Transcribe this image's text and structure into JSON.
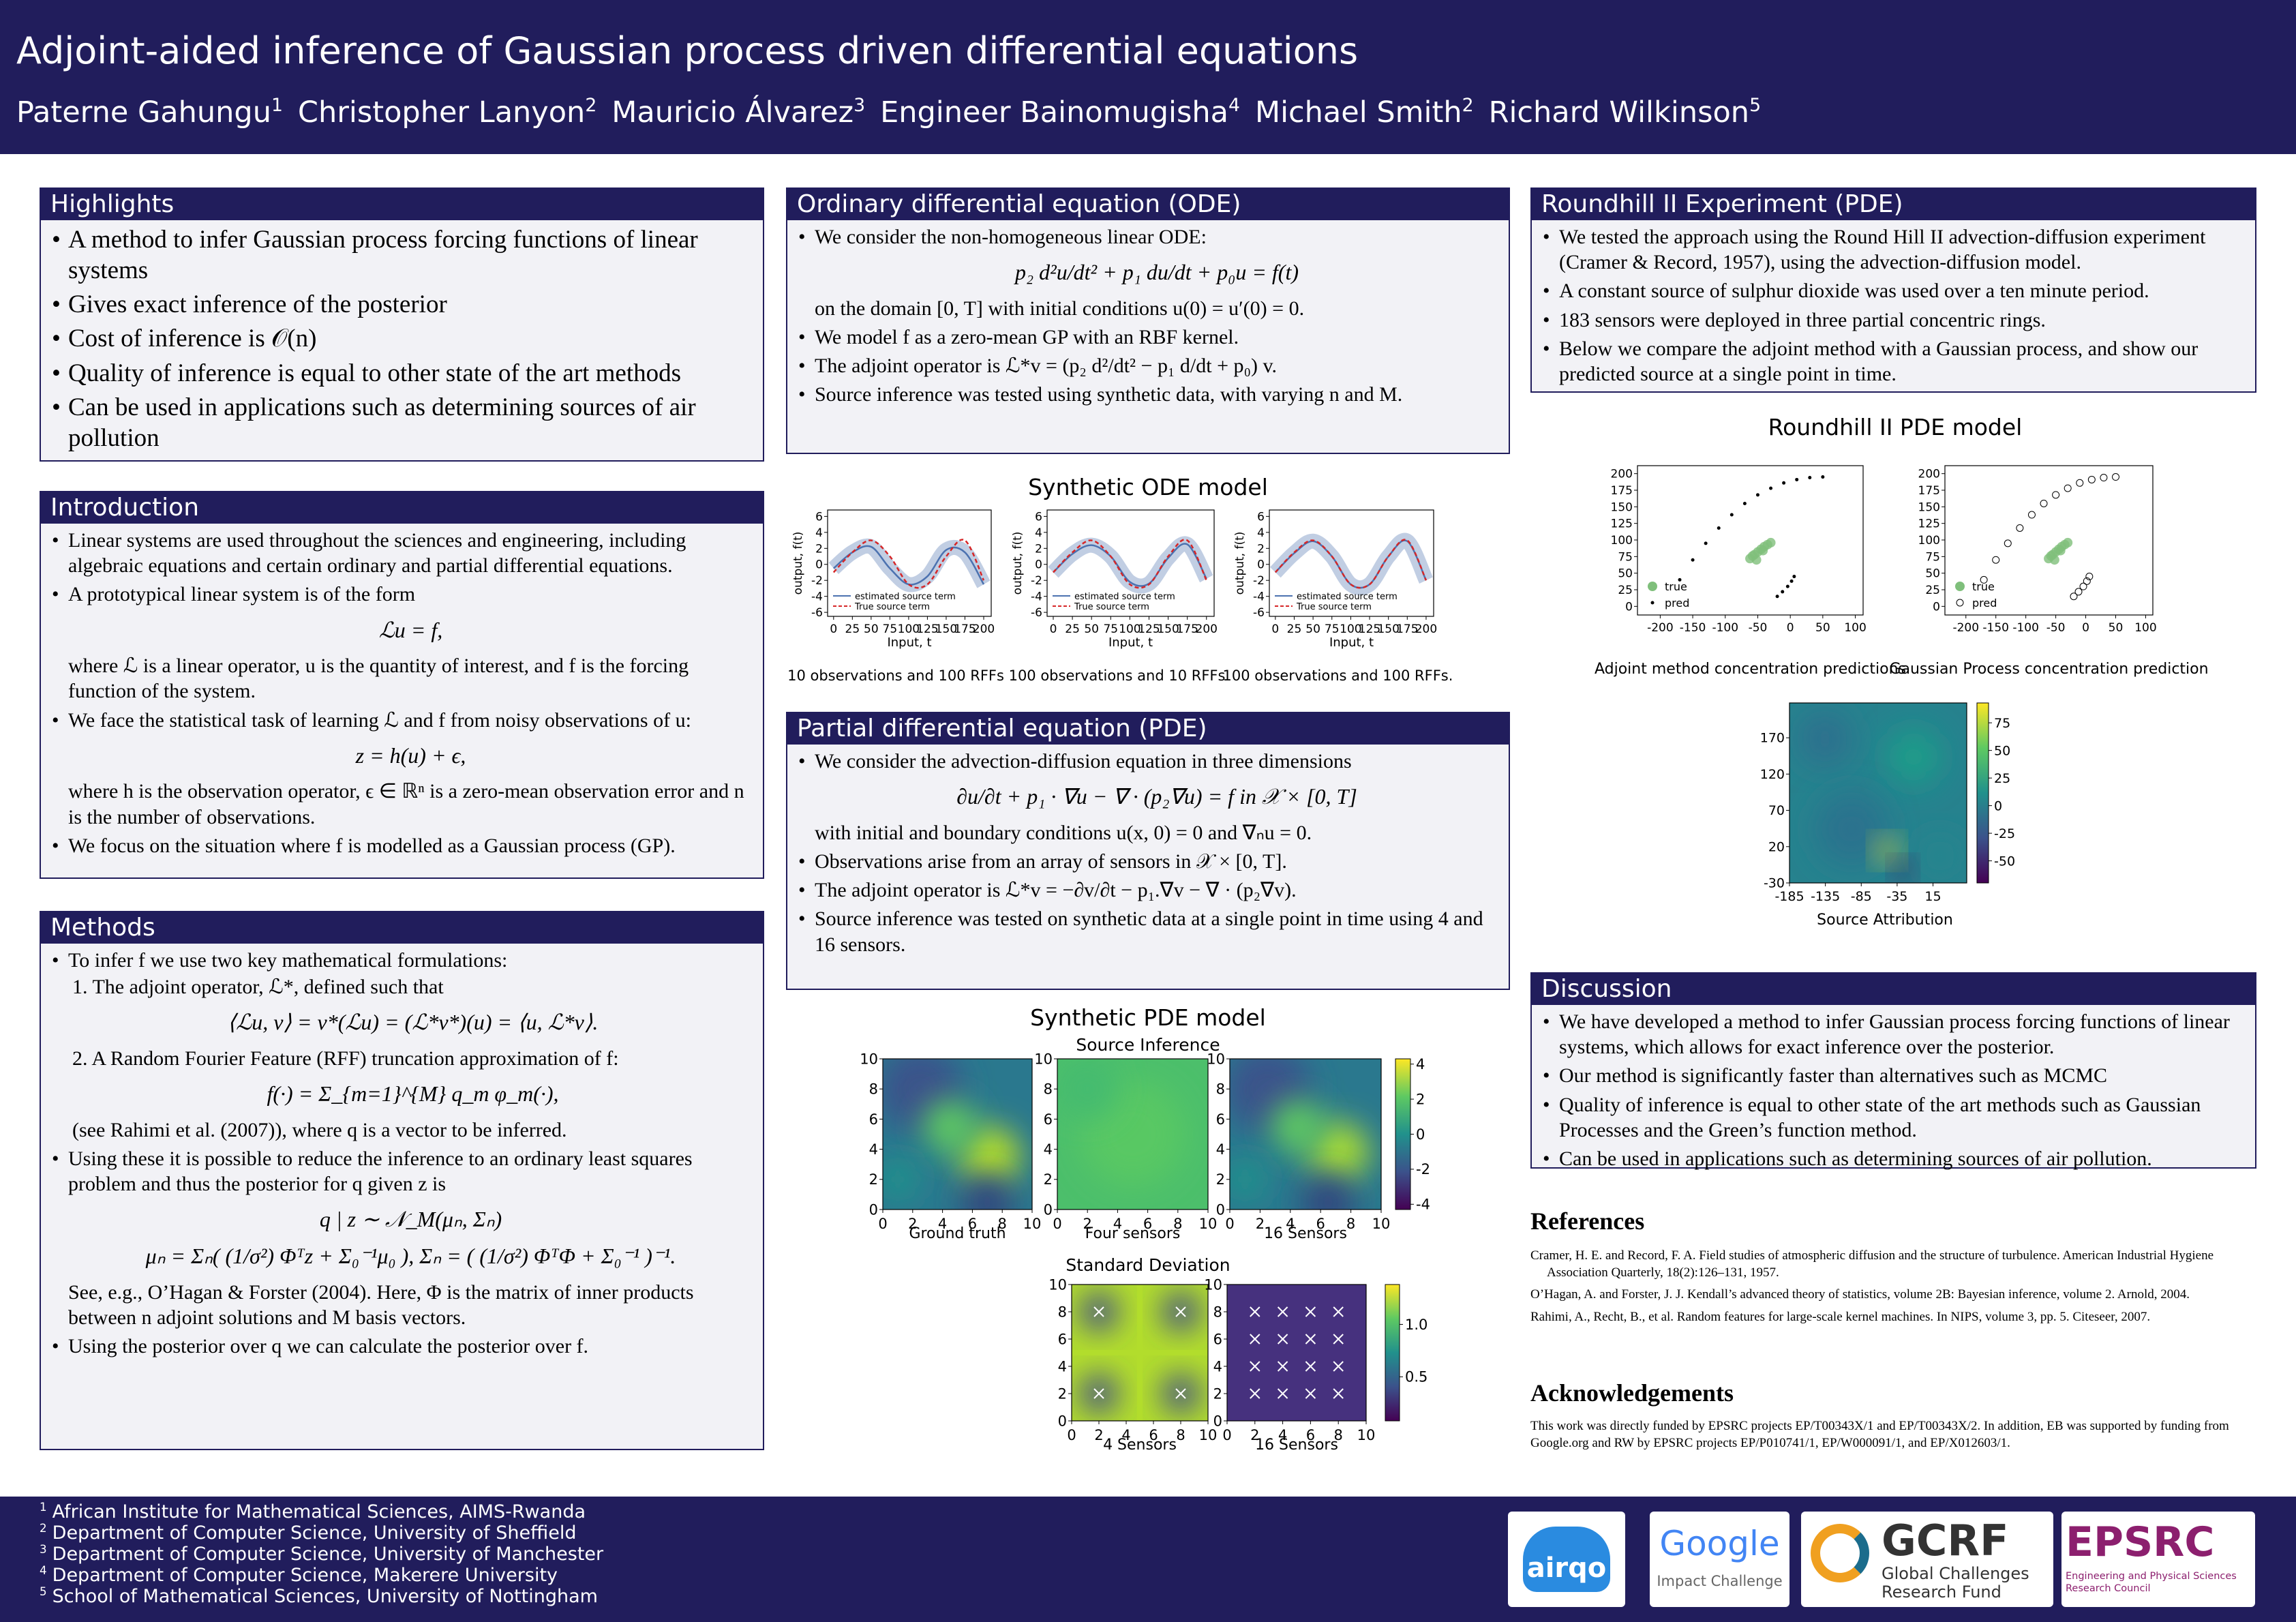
{
  "header": {
    "title": "Adjoint-aided inference of Gaussian process driven differential equations",
    "authors": [
      {
        "name": "Paterne Gahungu",
        "affiliation": "1"
      },
      {
        "name": "Christopher Lanyon",
        "affiliation": "2"
      },
      {
        "name": "Mauricio Álvarez",
        "affiliation": "3"
      },
      {
        "name": "Engineer Bainomugisha",
        "affiliation": "4"
      },
      {
        "name": "Michael Smith",
        "affiliation": "2"
      },
      {
        "name": "Richard Wilkinson",
        "affiliation": "5"
      }
    ]
  },
  "highlights": {
    "title": "Highlights",
    "items": [
      "A method to infer Gaussian process forcing functions of linear systems",
      "Gives exact inference of the posterior",
      "Cost of inference is 𝒪(n)",
      "Quality of inference is equal to other state of the art methods",
      "Can be used in applications such as determining sources of air pollution"
    ]
  },
  "introduction": {
    "title": "Introduction",
    "items": [
      "Linear systems are used throughout the sciences and engineering, including algebraic equations and certain ordinary and partial differential equations.",
      {
        "text": "A prototypical linear system is of the form",
        "equations": [
          "ℒu = f,"
        ],
        "after": "where ℒ is a linear operator, u is the quantity of interest, and f is the forcing function of the system."
      },
      {
        "text": "We face the statistical task of learning ℒ and f from noisy observations of u:",
        "equations": [
          "z = h(u) + ϵ,"
        ],
        "after": "where h is the observation operator, ϵ ∈ ℝⁿ is a zero-mean observation error and n is the number of observations."
      },
      "We focus on the situation where f is modelled as a Gaussian process (GP)."
    ]
  },
  "methods": {
    "title": "Methods",
    "items": [
      {
        "text": "To infer f we use two key mathematical formulations:",
        "sub": [
          {
            "text": "1. The adjoint operator, ℒ*, defined such that",
            "equations": [
              "⟨ℒu, v⟩ = v*(ℒu) = (ℒ*v*)(u) = ⟨u, ℒ*v⟩."
            ]
          },
          {
            "text": "2. A Random Fourier Feature (RFF) truncation approximation of f:",
            "equations": [
              "f(·) = Σ_{m=1}^{M} q_m φ_m(·),"
            ],
            "after": "(see Rahimi et al. (2007)), where q is a vector to be inferred."
          }
        ]
      },
      {
        "text": "Using these it is possible to reduce the inference to an ordinary least squares problem and thus the posterior for q given z is",
        "equations": [
          "q | z ∼ 𝒩_M(μₙ, Σₙ)",
          "μₙ = Σₙ( (1/σ²) Φᵀz + Σ₀⁻¹μ₀ ),   Σₙ = ( (1/σ²) ΦᵀΦ + Σ₀⁻¹ )⁻¹."
        ],
        "after": "See, e.g., O’Hagan & Forster (2004). Here, Φ is the matrix of inner products between n adjoint solutions and M basis vectors."
      },
      "Using the posterior over q we can calculate the posterior over f."
    ]
  },
  "ode": {
    "title": "Ordinary differential equation (ODE)",
    "items": [
      {
        "text": "We consider the non-homogeneous linear ODE:",
        "equations": [
          "p₂ d²u/dt² + p₁ du/dt + p₀u = f(t)"
        ],
        "after": "on the domain [0, T] with initial conditions u(0) = u′(0) = 0."
      },
      "We model f as a zero-mean GP with an RBF kernel.",
      "The adjoint operator is ℒ*v = (p₂ d²/dt² − p₁ d/dt + p₀) v.",
      "Source inference was tested using synthetic data, with varying n and M."
    ]
  },
  "pde": {
    "title": "Partial differential equation (PDE)",
    "items": [
      {
        "text": "We consider the advection-diffusion equation in three dimensions",
        "equations": [
          "∂u/∂t + p₁ · ∇u − ∇ · (p₂∇u) = f in 𝒳 × [0, T]"
        ],
        "after": "with initial and boundary conditions u(x, 0) = 0 and ∇ₙu = 0."
      },
      "Observations arise from an array of sensors in 𝒳 × [0, T].",
      "The adjoint operator is ℒ*v = −∂v/∂t − p₁.∇v − ∇ · (p₂∇v).",
      "Source inference was tested on synthetic data at a single point in time using 4 and 16 sensors."
    ]
  },
  "roundhill": {
    "title": "Roundhill II Experiment (PDE)",
    "items": [
      "We tested the approach using the Round Hill II advection-diffusion experiment (Cramer & Record, 1957), using the advection-diffusion model.",
      "A constant source of sulphur dioxide was used over a ten minute period.",
      "183 sensors were deployed in three partial concentric rings.",
      "Below we compare the adjoint method with a Gaussian process, and show our predicted source at a single point in time."
    ]
  },
  "discussion": {
    "title": "Discussion",
    "items": [
      "We have developed a method to infer Gaussian process forcing functions of linear systems, which allows for exact inference over the posterior.",
      "Our method is significantly faster than alternatives such as MCMC",
      "Quality of inference is equal to other state of the art methods such as Gaussian Processes and the Green’s function method.",
      "Can be used in applications such as determining sources of air pollution."
    ]
  },
  "references": {
    "title": "References",
    "items": [
      "Cramer, H. E. and Record, F. A. Field studies of atmospheric diffusion and the structure of turbulence. American Industrial Hygiene Association Quarterly, 18(2):126–131, 1957.",
      "O’Hagan, A. and Forster, J. J. Kendall’s advanced theory of statistics, volume 2B: Bayesian inference, volume 2. Arnold, 2004.",
      "Rahimi, A., Recht, B., et al. Random features for large-scale kernel machines. In NIPS, volume 3, pp. 5. Citeseer, 2007."
    ]
  },
  "acknowledgements": {
    "title": "Acknowledgements",
    "text": "This work was directly funded by EPSRC projects EP/T00343X/1 and EP/T00343X/2. In addition, EB was supported by funding from Google.org and RW by EPSRC projects EP/P010741/1, EP/W000091/1, and EP/X012603/1."
  },
  "ode_figure": {
    "title": "Synthetic ODE model",
    "panels": [
      {
        "type": "line",
        "caption": "10 observations and 100 RFFs",
        "xlabel": "Input, t",
        "ylabel": "output, f(t)",
        "x": [
          0,
          25,
          50,
          75,
          100,
          125,
          150,
          175,
          200
        ],
        "xlim": [
          -8,
          210
        ],
        "ylim": [
          -6.5,
          6.8
        ],
        "xticks": [
          0,
          25,
          50,
          75,
          100,
          125,
          150,
          175,
          200
        ],
        "yticks": [
          -6,
          -4,
          -2,
          0,
          2,
          4,
          6
        ],
        "series": [
          {
            "name": "estimated source term",
            "color": "#4c72b0",
            "values": [
              -0.5,
              1.5,
              2.2,
              -0.5,
              -2.5,
              -1.5,
              1.8,
              1.5,
              -2.5
            ]
          },
          {
            "name": "True source term",
            "color": "#d62728",
            "dashed": true,
            "values": [
              -1,
              1.5,
              3,
              1,
              -2.5,
              -2.5,
              1,
              3,
              -2
            ]
          }
        ]
      },
      {
        "type": "line",
        "caption": "100 observations and 10 RFFs",
        "xlabel": "Input, t",
        "ylabel": "output, f(t)",
        "x": [
          0,
          25,
          50,
          75,
          100,
          125,
          150,
          175,
          200
        ],
        "xlim": [
          -8,
          210
        ],
        "ylim": [
          -6.5,
          6.8
        ],
        "xticks": [
          0,
          25,
          50,
          75,
          100,
          125,
          150,
          175,
          200
        ],
        "yticks": [
          -6,
          -4,
          -2,
          0,
          2,
          4,
          6
        ],
        "series": [
          {
            "name": "estimated source term",
            "color": "#4c72b0",
            "values": [
              -1,
              1.3,
              2.4,
              1,
              -2.2,
              -2.4,
              0.8,
              2.5,
              -1.8
            ]
          },
          {
            "name": "True source term",
            "color": "#d62728",
            "dashed": true,
            "values": [
              -1,
              1.5,
              3,
              1,
              -2.5,
              -2.5,
              1,
              3,
              -2
            ]
          }
        ]
      },
      {
        "type": "line",
        "caption": "100 observations and 100 RFFs.",
        "xlabel": "Input, t",
        "ylabel": "output, f(t)",
        "x": [
          0,
          25,
          50,
          75,
          100,
          125,
          150,
          175,
          200
        ],
        "xlim": [
          -8,
          210
        ],
        "ylim": [
          -6.5,
          6.8
        ],
        "xticks": [
          0,
          25,
          50,
          75,
          100,
          125,
          150,
          175,
          200
        ],
        "yticks": [
          -6,
          -4,
          -2,
          0,
          2,
          4,
          6
        ],
        "series": [
          {
            "name": "estimated source term",
            "color": "#4c72b0",
            "values": [
              -1,
              1.4,
              2.9,
              1,
              -2.5,
              -2.5,
              1,
              2.9,
              -2
            ]
          },
          {
            "name": "True source term",
            "color": "#d62728",
            "dashed": true,
            "values": [
              -1,
              1.5,
              3,
              1,
              -2.5,
              -2.5,
              1,
              3,
              -2
            ]
          }
        ]
      }
    ]
  },
  "pde_figure": {
    "title": "Synthetic PDE model",
    "inference": {
      "type": "heatmap",
      "title": "Source Inference",
      "xlim": [
        0,
        10
      ],
      "ylim": [
        0,
        10
      ],
      "xticks": [
        0,
        2,
        4,
        6,
        8,
        10
      ],
      "yticks": [
        0,
        2,
        4,
        6,
        8,
        10
      ],
      "clim": [
        -4.3,
        4.3
      ],
      "cticks": [
        -4,
        -2,
        0,
        2,
        4
      ],
      "panels": [
        {
          "caption": "Ground truth"
        },
        {
          "caption": "Four sensors"
        },
        {
          "caption": "16 Sensors"
        }
      ]
    },
    "std": {
      "type": "heatmap",
      "title": "Standard Deviation",
      "xlim": [
        0,
        10
      ],
      "ylim": [
        0,
        10
      ],
      "xticks": [
        0,
        2,
        4,
        6,
        8,
        10
      ],
      "yticks": [
        0,
        2,
        4,
        6,
        8,
        10
      ],
      "clim": [
        0.08,
        1.38
      ],
      "cticks": [
        0.5,
        {
          "value": 1,
          "label": "1.0"
        }
      ],
      "panels": [
        {
          "caption": "4 Sensors",
          "sensors_x": [
            2,
            2,
            8,
            8
          ],
          "sensors_y": [
            2,
            8,
            2,
            8
          ]
        },
        {
          "caption": "16 Sensors",
          "sensors_x": [
            2,
            4,
            6,
            8,
            2,
            4,
            6,
            8,
            2,
            4,
            6,
            8,
            2,
            4,
            6,
            8
          ],
          "sensors_y": [
            2,
            2,
            2,
            2,
            4,
            4,
            4,
            4,
            6,
            6,
            6,
            6,
            8,
            8,
            8,
            8
          ]
        }
      ]
    }
  },
  "roundhill_figure": {
    "type": "scatter",
    "title": "Roundhill II PDE model",
    "xlim": [
      -235,
      112
    ],
    "ylim": [
      -13,
      212
    ],
    "xticks": [
      -200,
      -150,
      -100,
      -50,
      0,
      50,
      100
    ],
    "yticks": [
      0,
      25,
      50,
      75,
      100,
      125,
      150,
      175,
      200
    ],
    "series": [
      {
        "name": "true",
        "color": "#7fbf7b",
        "x": [
          -62,
          -55,
          -50,
          -45,
          -40,
          -35,
          -30,
          -52,
          -42,
          -58
        ],
        "y": [
          72,
          78,
          82,
          86,
          90,
          93,
          96,
          70,
          84,
          76
        ]
      },
      {
        "name": "pred",
        "color": "#000000",
        "x": [
          -170,
          -150,
          -130,
          -110,
          -90,
          -70,
          -50,
          -30,
          -10,
          10,
          30,
          50,
          -20,
          -12,
          -4,
          2,
          6
        ],
        "y": [
          40,
          70,
          95,
          118,
          138,
          155,
          168,
          178,
          186,
          191,
          194,
          195,
          15,
          22,
          30,
          38,
          45
        ]
      }
    ],
    "panels": [
      {
        "caption": "Adjoint method concentration predictions",
        "pred_marker": "dot"
      },
      {
        "caption": "Gaussian Process concentration prediction",
        "pred_marker": "circle"
      }
    ]
  },
  "attribution_figure": {
    "type": "heatmap",
    "xlabel": "Source Attribution",
    "xlim": [
      -185,
      62
    ],
    "ylim": [
      -30,
      218
    ],
    "xticks": [
      -185,
      -135,
      -85,
      -35,
      15
    ],
    "yticks": [
      170,
      120,
      70,
      20,
      -30
    ],
    "clim": [
      -70,
      93
    ],
    "cticks": [
      -50,
      -25,
      0,
      25,
      50,
      75
    ]
  },
  "footer": {
    "affiliations": [
      {
        "number": "1",
        "text": "African Institute for Mathematical Sciences, AIMS-Rwanda"
      },
      {
        "number": "2",
        "text": "Department of Computer Science, University of Sheffield"
      },
      {
        "number": "3",
        "text": "Department of Computer Science, University of Manchester"
      },
      {
        "number": "4",
        "text": "Department of Computer Science, Makerere University"
      },
      {
        "number": "5",
        "text": "School of Mathematical Sciences, University of Nottingham"
      }
    ],
    "logos": {
      "airqo": "airqo",
      "google": "Google",
      "google_sub": "Impact Challenge",
      "gcrf": "GCRF",
      "gcrf_sub": [
        "Global Challenges",
        "Research Fund"
      ],
      "epsrc": "EPSRC",
      "epsrc_sub": [
        "Engineering and Physical Sciences",
        "Research Council"
      ]
    }
  }
}
